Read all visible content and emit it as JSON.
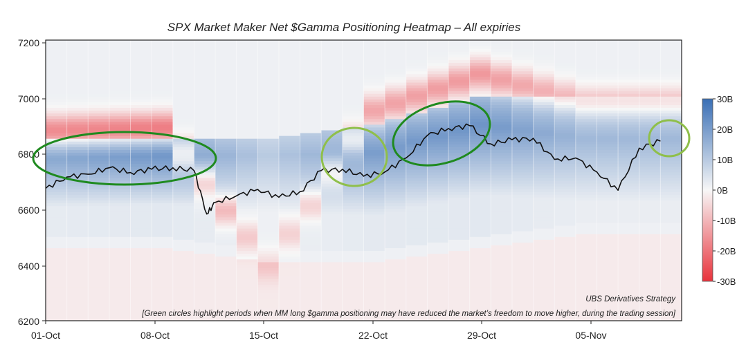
{
  "chart_data": {
    "type": "heatmap",
    "title": "SPX Market Maker Net $Gamma Positioning Heatmap – All expiries",
    "xlabel": "",
    "ylabel": "",
    "x_ticks": [
      "01-Oct",
      "08-Oct",
      "15-Oct",
      "22-Oct",
      "29-Oct",
      "05-Nov"
    ],
    "y_ticks": [
      6200,
      6400,
      6600,
      6800,
      7000,
      7200
    ],
    "ylim": [
      6200,
      7200
    ],
    "grid": false,
    "colorbar": {
      "ticks": [
        "30B",
        "20B",
        "10B",
        "0B",
        "-10B",
        "-20B",
        "-30B"
      ],
      "range": [
        -30,
        30
      ],
      "positive_color": "#3a6fb5",
      "negative_color": "#e8333c",
      "zero_color": "#f7f7f7"
    },
    "series": [
      {
        "name": "",
        "color": "#111111",
        "points": [
          [
            "01-Oct",
            6672
          ],
          [
            "02-Oct",
            6712
          ],
          [
            "03-Oct",
            6722
          ],
          [
            "06-Oct",
            6745
          ],
          [
            "07-Oct",
            6728
          ],
          [
            "08-Oct",
            6740
          ],
          [
            "09-Oct",
            6745
          ],
          [
            "10-Oct",
            6735
          ],
          [
            "10-Oct",
            6580
          ],
          [
            "13-Oct",
            6622
          ],
          [
            "14-Oct",
            6645
          ],
          [
            "15-Oct",
            6668
          ],
          [
            "16-Oct",
            6640
          ],
          [
            "17-Oct",
            6660
          ],
          [
            "20-Oct",
            6735
          ],
          [
            "21-Oct",
            6740
          ],
          [
            "22-Oct",
            6715
          ],
          [
            "23-Oct",
            6730
          ],
          [
            "24-Oct",
            6780
          ],
          [
            "27-Oct",
            6860
          ],
          [
            "28-Oct",
            6885
          ],
          [
            "29-Oct",
            6895
          ],
          [
            "30-Oct",
            6830
          ],
          [
            "31-Oct",
            6845
          ],
          [
            "03-Nov",
            6850
          ],
          [
            "04-Nov",
            6775
          ],
          [
            "05-Nov",
            6780
          ],
          [
            "06-Nov",
            6730
          ],
          [
            "07-Nov",
            6665
          ],
          [
            "10-Nov",
            6815
          ],
          [
            "11-Nov",
            6840
          ]
        ]
      }
    ],
    "heatmap_bands": [
      {
        "date": "01-Oct",
        "low": 6500,
        "high": 6850,
        "peak_strike": 6780,
        "peak_value": 18,
        "neg_strike": 6880,
        "neg_value": -18
      },
      {
        "date": "08-Oct",
        "low": 6500,
        "high": 6850,
        "peak_strike": 6790,
        "peak_value": 22,
        "neg_strike": 6890,
        "neg_value": -20
      },
      {
        "date": "15-Oct",
        "low": 6450,
        "high": 6850,
        "peak_strike": 6790,
        "peak_value": 10,
        "neg_strike": 6400,
        "neg_value": -6
      },
      {
        "date": "22-Oct",
        "low": 6450,
        "high": 6900,
        "peak_strike": 6800,
        "peak_value": 20,
        "neg_strike": 6950,
        "neg_value": -14
      },
      {
        "date": "29-Oct",
        "low": 6500,
        "high": 7000,
        "peak_strike": 6900,
        "peak_value": 22,
        "neg_strike": 7080,
        "neg_value": -16
      },
      {
        "date": "05-Nov",
        "low": 6550,
        "high": 7000,
        "peak_strike": 6850,
        "peak_value": 14,
        "neg_strike": 6980,
        "neg_value": -10
      }
    ],
    "annotations": [
      {
        "text": "UBS Derivatives Strategy",
        "position": "bottom-right"
      },
      {
        "text": "[Green circles highlight periods when MM long $gamma positioning may have reduced the market’s freedom to move higher, during the trading session]",
        "position": "bottom-right"
      }
    ],
    "highlight_ellipses": [
      {
        "x_start": "01-Oct",
        "x_end": "10-Oct",
        "y_low": 6700,
        "y_high": 6850,
        "color": "#1f8a1f"
      },
      {
        "x_start": "20-Oct",
        "x_end": "22-Oct",
        "y_low": 6690,
        "y_high": 6880,
        "color": "#8fbf4a"
      },
      {
        "x_start": "23-Oct",
        "x_end": "29-Oct",
        "y_low": 6780,
        "y_high": 6960,
        "color": "#1f8a1f"
      },
      {
        "x_start": "10-Nov",
        "x_end": "11-Nov",
        "y_low": 6800,
        "y_high": 6900,
        "color": "#8fbf4a"
      }
    ]
  }
}
